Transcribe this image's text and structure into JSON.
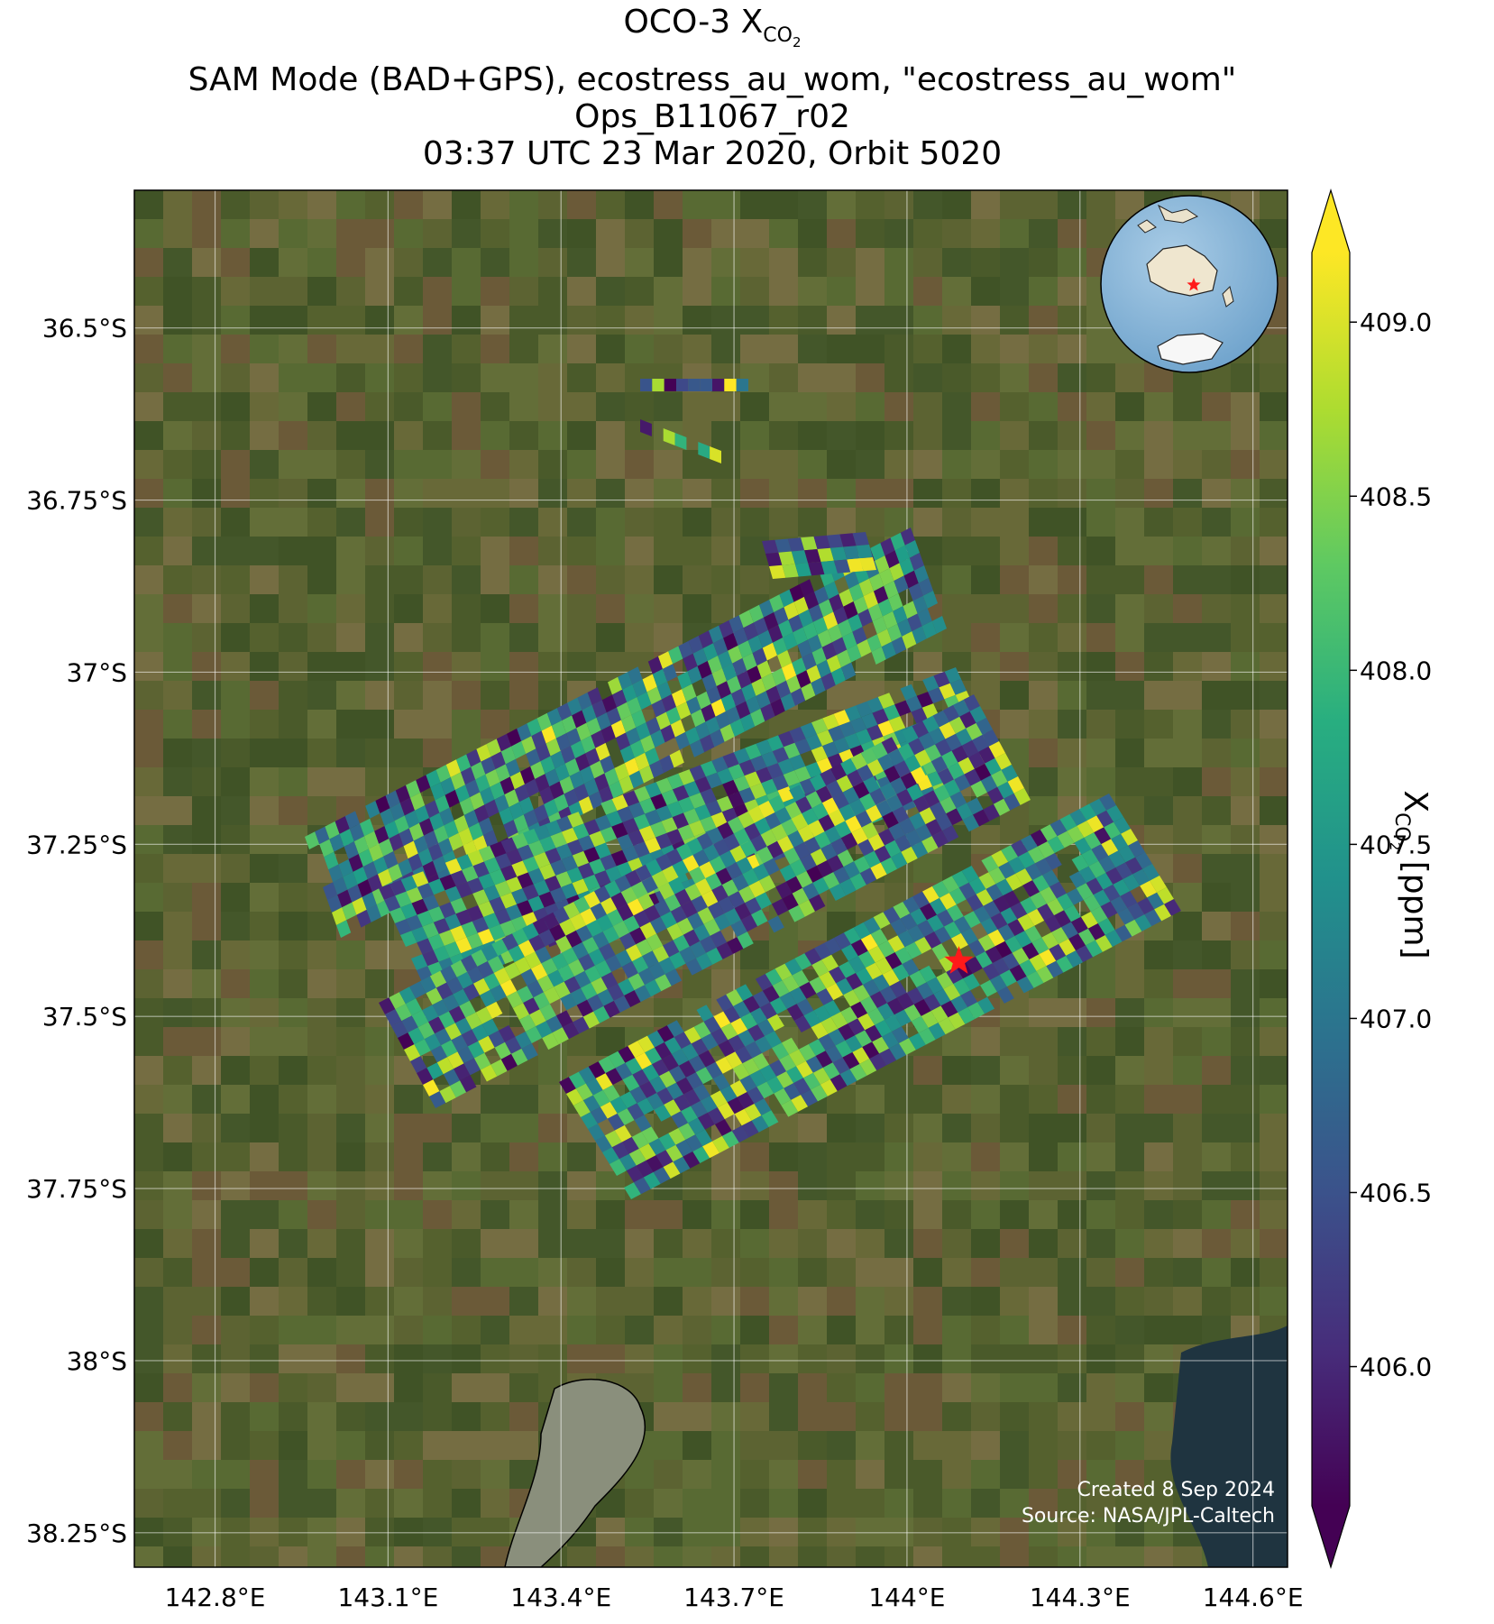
{
  "title": {
    "line1_main": "OCO-3 X",
    "line1_sub_main": "CO",
    "line1_sub_sub": "2",
    "line2": "SAM Mode (BAD+GPS), ecostress_au_wom, \"ecostress_au_wom\"",
    "line3": "Ops_B11067_r02",
    "line4": "03:37 UTC 23 Mar 2020, Orbit 5020"
  },
  "colorbar": {
    "label_main": "X",
    "label_sub_main": "CO",
    "label_sub_sub": "2",
    "label_unit": " [ppm]",
    "ticks": [
      "406.0",
      "406.5",
      "407.0",
      "407.5",
      "408.0",
      "408.5",
      "409.0"
    ],
    "tick_values": [
      406.0,
      406.5,
      407.0,
      407.5,
      408.0,
      408.5,
      409.0
    ],
    "vmin": 405.6,
    "vmax": 409.2,
    "colormap": "viridis",
    "extend": "both"
  },
  "credits": {
    "created": "Created 8 Sep 2024",
    "source": "Source: NASA/JPL-Caltech"
  },
  "chart_data": {
    "type": "heatmap",
    "title": "OCO-3 XCO2 SAM Mode (BAD+GPS), ecostress_au_wom, \"ecostress_au_wom\" Ops_B11067_r02 03:37 UTC 23 Mar 2020, Orbit 5020",
    "xlabel": "",
    "ylabel": "",
    "x_ticks": [
      "142.8°E",
      "143.1°E",
      "143.4°E",
      "143.7°E",
      "144°E",
      "144.3°E",
      "144.6°E"
    ],
    "x_tick_values": [
      142.8,
      143.1,
      143.4,
      143.7,
      144.0,
      144.3,
      144.6
    ],
    "y_ticks": [
      "36.5°S",
      "36.75°S",
      "37°S",
      "37.25°S",
      "37.5°S",
      "37.75°S",
      "38°S",
      "38.25°S"
    ],
    "y_tick_values": [
      -36.5,
      -36.75,
      -37.0,
      -37.25,
      -37.5,
      -37.75,
      -38.0,
      -38.25
    ],
    "xlim": [
      142.66,
      144.66
    ],
    "ylim": [
      -38.3,
      -36.3
    ],
    "target": {
      "name": "ecostress_au_wom",
      "lon": 144.09,
      "lat": -37.42,
      "marker": "red-star"
    },
    "grid": true,
    "background": "satellite imagery",
    "units": "ppm",
    "value_range": [
      405.6,
      409.2
    ],
    "inset": "globe-orthographic-australia"
  }
}
